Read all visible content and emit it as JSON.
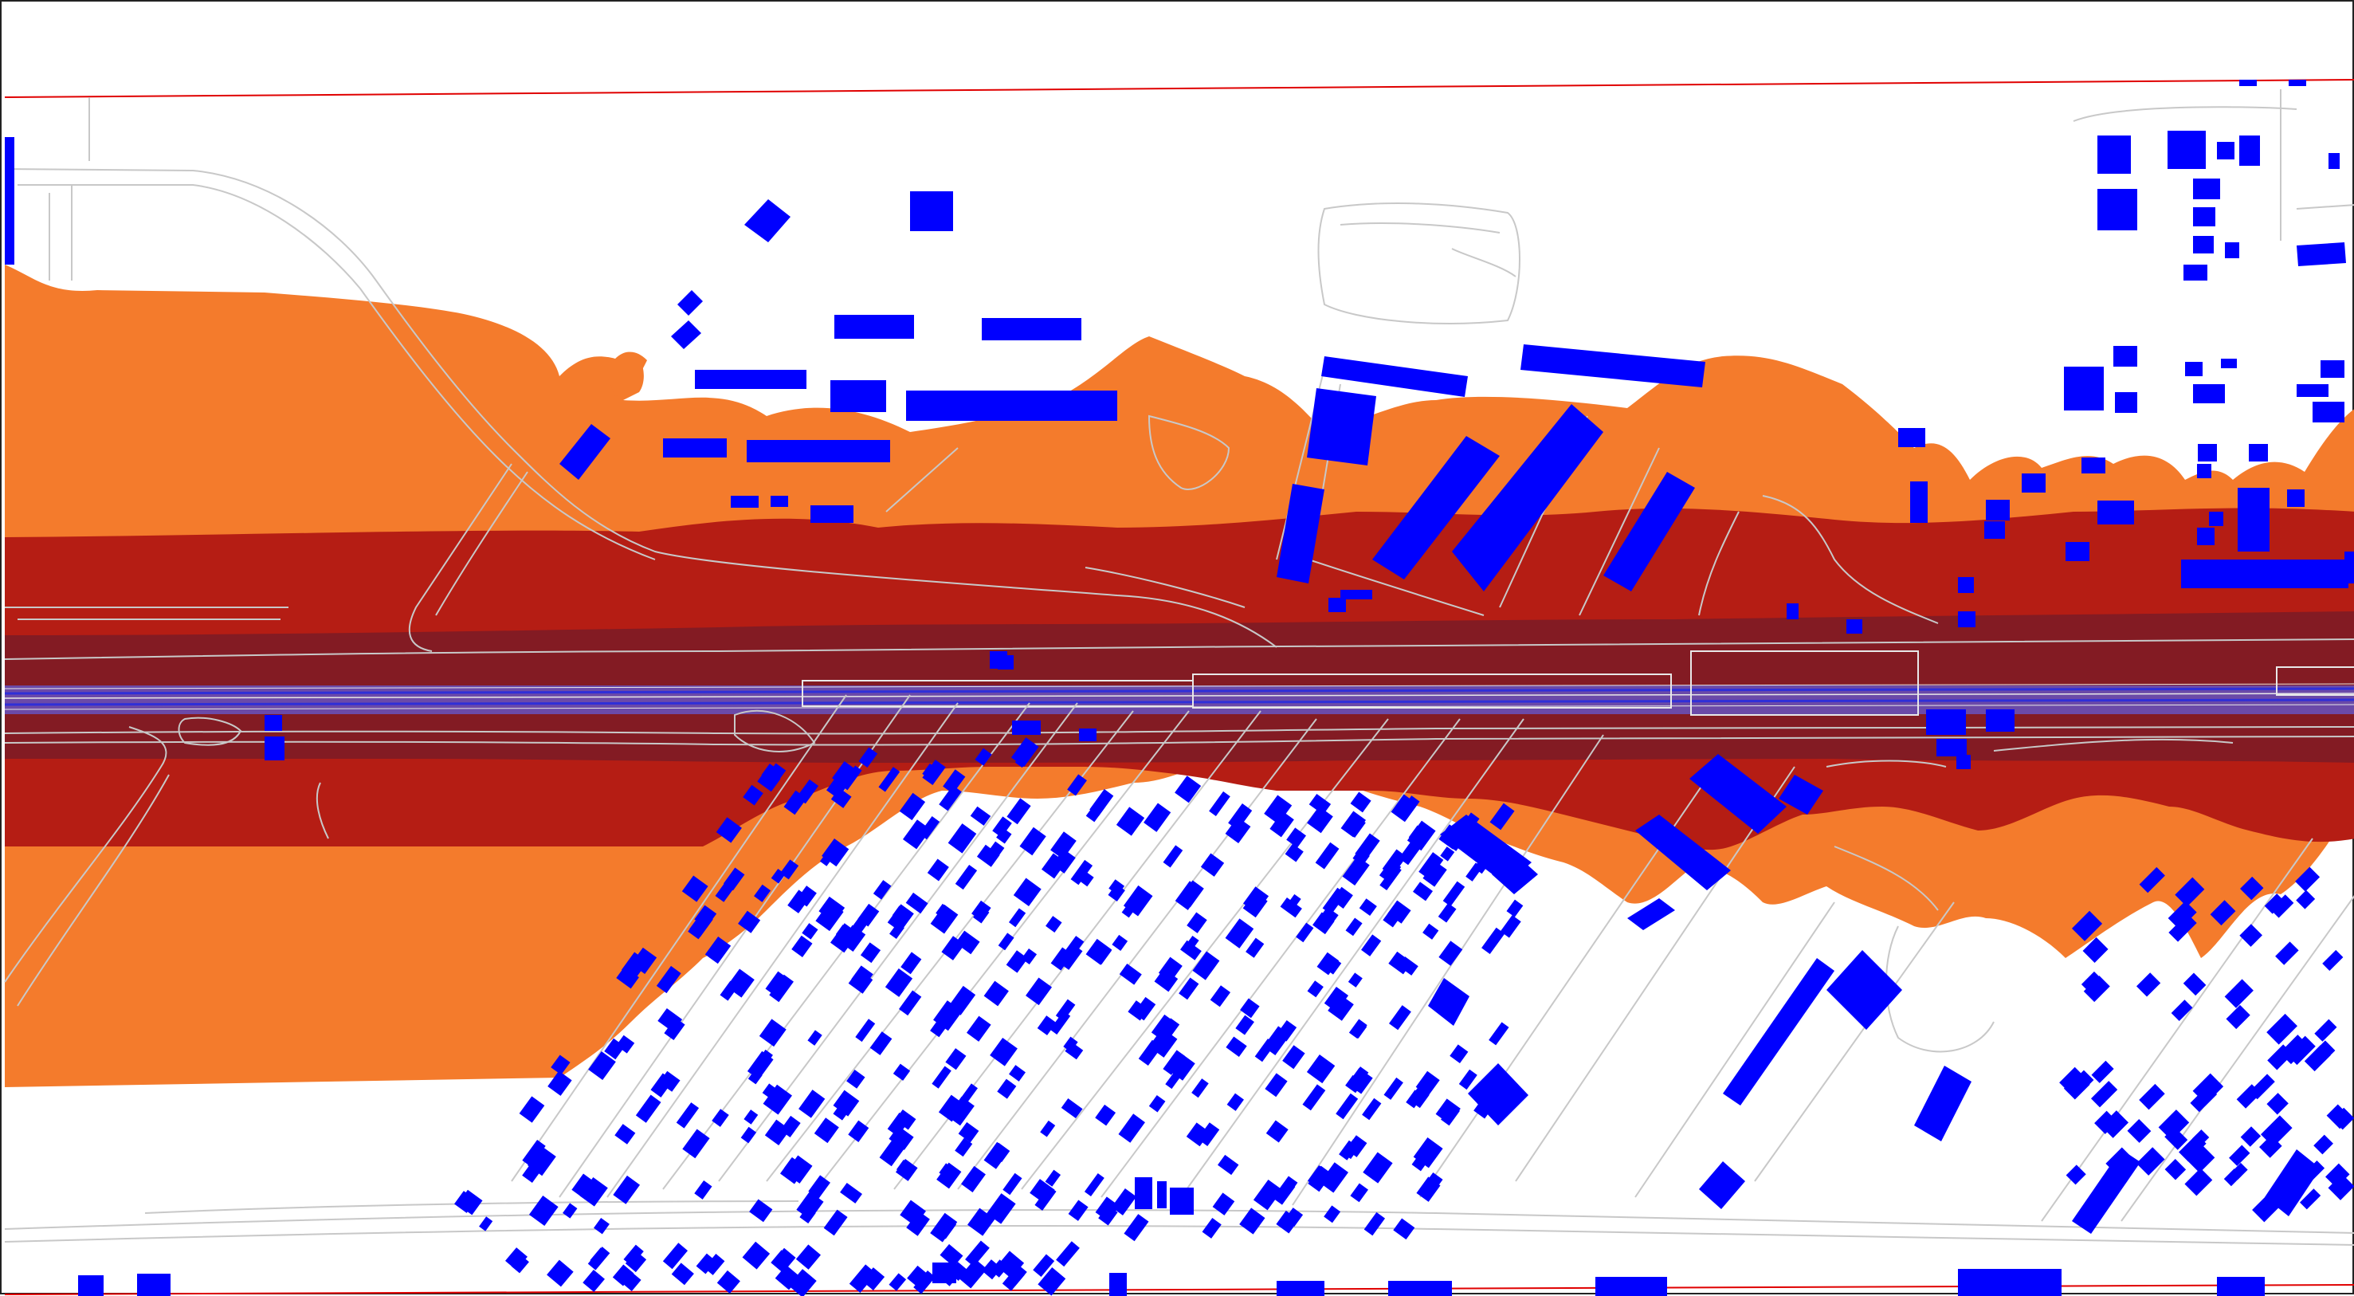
{
  "map": {
    "colors": {
      "background": "#ffffff",
      "frame": "#222222",
      "study_boundary": "#e00000",
      "zone_outer": "#f47b2c",
      "zone_middle": "#b51d14",
      "zone_inner": "#831b23",
      "corridor": "#6b4aa8",
      "rail_lines": "#2f2fd8",
      "buildings": "#0000ff",
      "roads": "#c8c8c8"
    },
    "layers": [
      "study-boundary",
      "noise-zone-outer",
      "noise-zone-middle",
      "noise-zone-inner",
      "rail-corridor",
      "roads",
      "buildings"
    ]
  }
}
